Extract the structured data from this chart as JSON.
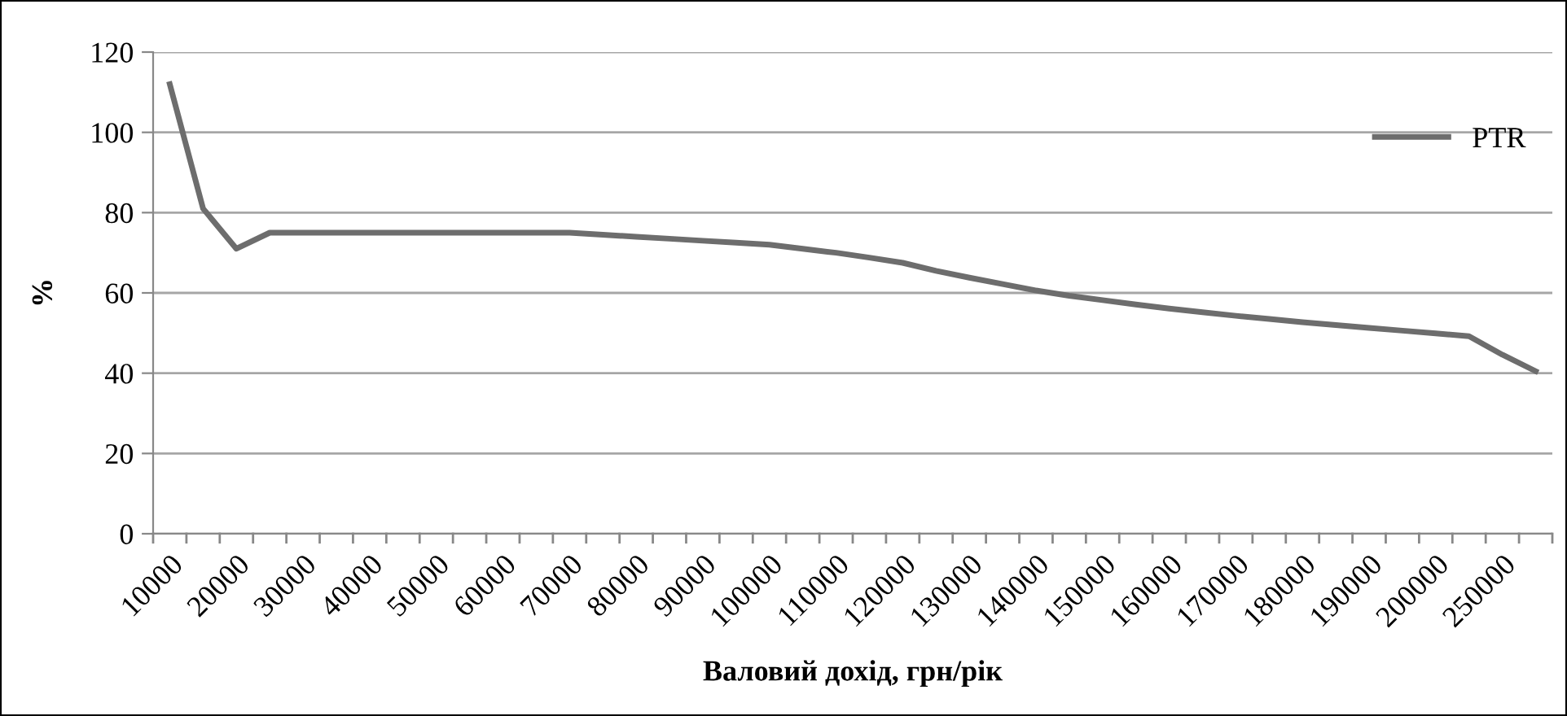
{
  "chart_data": {
    "type": "line",
    "xlabel": "Валовий дохід, грн/рік",
    "ylabel": "%",
    "categories": [
      "10000",
      null,
      "20000",
      null,
      "30000",
      null,
      "40000",
      null,
      "50000",
      null,
      "60000",
      null,
      "70000",
      null,
      "80000",
      null,
      "90000",
      null,
      "100000",
      null,
      "110000",
      null,
      "120000",
      null,
      "130000",
      null,
      "140000",
      null,
      "150000",
      null,
      "160000",
      null,
      "170000",
      null,
      "180000",
      null,
      "190000",
      null,
      "200000",
      null,
      "250000",
      null
    ],
    "series": [
      {
        "name": "PTR",
        "color": "#6d6d6d",
        "values": [
          112,
          81,
          71,
          75,
          75,
          75,
          75,
          75,
          75,
          75,
          75,
          75,
          75,
          74.5,
          74,
          73.5,
          73,
          72.5,
          72,
          71,
          70,
          68.8,
          67.5,
          65.5,
          63.8,
          62.2,
          60.6,
          59.3,
          58.2,
          57.1,
          56.1,
          55.2,
          54.3,
          53.5,
          52.7,
          52,
          51.3,
          50.6,
          49.9,
          49.2,
          44.6,
          40.5
        ]
      }
    ],
    "ylim": [
      0,
      120
    ],
    "yticks": [
      0,
      20,
      40,
      60,
      80,
      100,
      120
    ],
    "grid": "y",
    "legend": "top right",
    "marker": "none",
    "line_style": "solid"
  }
}
